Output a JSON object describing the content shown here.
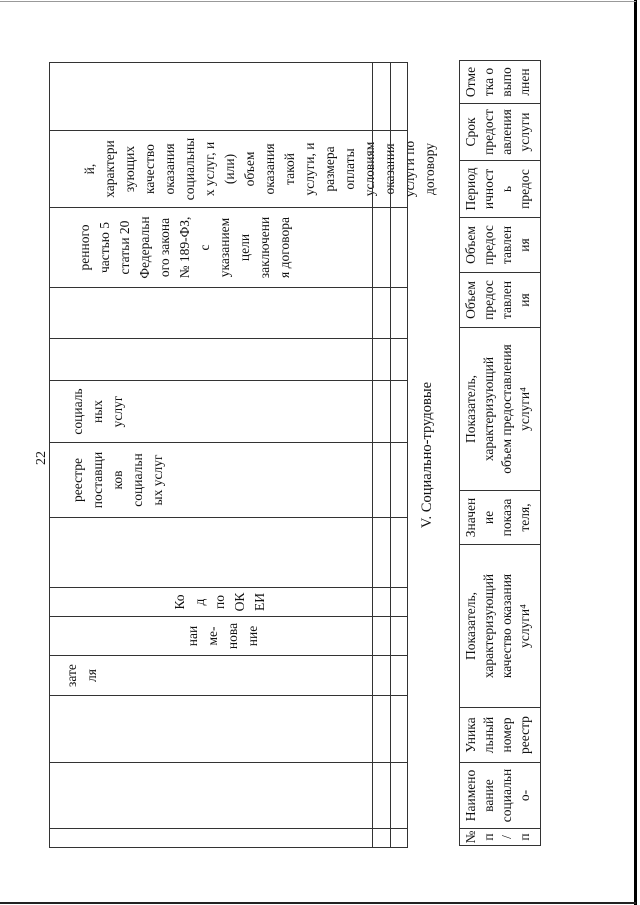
{
  "page_number": "22",
  "upper_table": {
    "header_cells": [
      "",
      "",
      "",
      "зате\nля",
      "наи\nме-\nнова\nние",
      "Ко\nд\nпо\nОК\nЕИ",
      "",
      "реестре\nпоставщи\nков\nсоциальн\nых услуг",
      "социаль\nных\nуслуг",
      "",
      "",
      "ренного\nчастью 5\nстатьи 20\nФедеральн\nого закона\n№ 189-ФЗ,\nс\nуказанием\nцели\nзаключени\nя договора",
      "й,\nхарактери\nзующих\nкачество\nоказания\nсоциальны\nх услуг, и\n(или)\nобъем\nоказания\nтакой\nуслуги, и\nразмера\nоплаты\nусловиям\nоказания\nуслуги по\nдоговору",
      ""
    ]
  },
  "section_heading": "V. Социально-трудовые",
  "lower_table": {
    "headers": [
      "№\nп\n/\nп",
      "Наимено\nвание\nсоциальн\nо-",
      "Уника\nльный\nномер\nреестр",
      "Показатель,\nхарактеризующий\nкачество оказания\nуслуги⁴",
      "Значен\nие\nпоказа\nтеля,",
      "Показатель,\nхарактеризующий\nобъем предоставления\nуслуги⁴",
      "Объем\nпредос\nтавлен\nия",
      "Объем\nпредос\nтавлен\nия",
      "Период\nичност\nь\nпредос",
      "Срок\nпредост\nавления\nуслуги",
      "Отме\nтка о\nвыпо\nлнен"
    ]
  }
}
